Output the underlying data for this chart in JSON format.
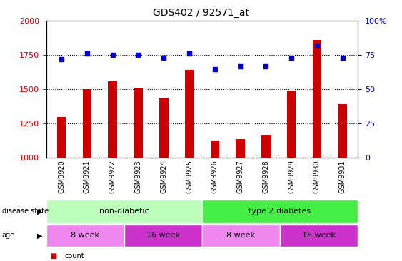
{
  "title": "GDS402 / 92571_at",
  "categories": [
    "GSM9920",
    "GSM9921",
    "GSM9922",
    "GSM9923",
    "GSM9924",
    "GSM9925",
    "GSM9926",
    "GSM9927",
    "GSM9928",
    "GSM9929",
    "GSM9930",
    "GSM9931"
  ],
  "bar_values": [
    1300,
    1500,
    1560,
    1510,
    1440,
    1640,
    1120,
    1140,
    1165,
    1490,
    1860,
    1390
  ],
  "percentile_values": [
    72,
    76,
    75,
    75,
    73,
    76,
    65,
    67,
    67,
    73,
    82,
    73
  ],
  "bar_color": "#cc0000",
  "percentile_color": "#0000cc",
  "ylim_left": [
    1000,
    2000
  ],
  "ylim_right": [
    0,
    100
  ],
  "yticks_left": [
    1000,
    1250,
    1500,
    1750,
    2000
  ],
  "yticks_right": [
    0,
    25,
    50,
    75,
    100
  ],
  "dotted_line_values": [
    1250,
    1500,
    1750
  ],
  "disease_state_labels": [
    "non-diabetic",
    "type 2 diabetes"
  ],
  "disease_state_colors": [
    "#bbffbb",
    "#44ee44"
  ],
  "age_labels": [
    "8 week",
    "16 week",
    "8 week",
    "16 week"
  ],
  "age_colors_light": "#ee88ee",
  "age_colors_dark": "#cc33cc",
  "bar_width": 0.35,
  "bar_baseline": 1000
}
